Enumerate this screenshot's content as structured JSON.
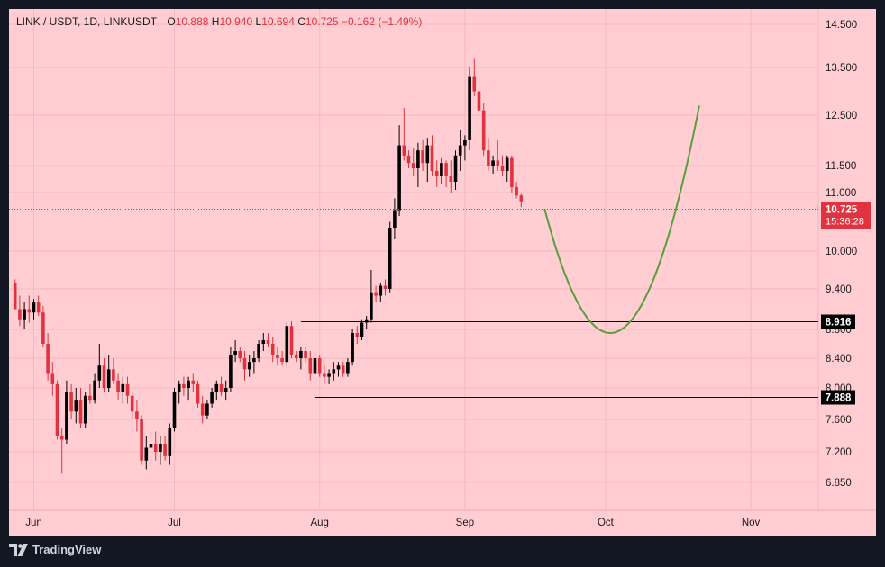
{
  "header": {
    "symbol": "LINK / USDT, 1D, LINKUSDT",
    "open_label": "O",
    "open": "10.888",
    "high_label": "H",
    "high": "10.940",
    "low_label": "L",
    "low": "10.694",
    "close_label": "C",
    "close": "10.725",
    "change": "−0.162 (−1.49%)"
  },
  "footer": {
    "brand": "TradingView",
    "icon": "tradingview-logo-icon"
  },
  "colors": {
    "background": "#ffcdd2",
    "up": "#000000",
    "down": "#e0323f",
    "projection": "#5a9e3c",
    "grid": "#f3b9be"
  },
  "chart_data": {
    "type": "candlestick",
    "yticks": [
      "14.500",
      "13.500",
      "12.500",
      "11.500",
      "11.000",
      "10.000",
      "9.400",
      "8.800",
      "8.400",
      "8.000",
      "7.600",
      "7.200",
      "6.850"
    ],
    "xticks": [
      "Jun",
      "Jul",
      "Aug",
      "Sep",
      "Oct",
      "Nov"
    ],
    "last_price": "10.725",
    "countdown": "15:36:28",
    "levels": [
      {
        "label": "8.916",
        "value": 8.916,
        "from_date": "2023-07-28"
      },
      {
        "label": "7.888",
        "value": 7.888,
        "from_date": "2023-07-31"
      }
    ],
    "projection": {
      "start": [
        "2023-09-18",
        10.72
      ],
      "bottom": [
        "2023-10-02",
        8.75
      ],
      "end": [
        "2023-10-21",
        12.7
      ]
    },
    "candles": [
      [
        "2023-05-28",
        9.5,
        9.55,
        9.1,
        9.1
      ],
      [
        "2023-05-29",
        9.1,
        9.3,
        8.85,
        8.95
      ],
      [
        "2023-05-30",
        8.95,
        9.2,
        8.8,
        9.1
      ],
      [
        "2023-05-31",
        9.1,
        9.3,
        8.9,
        9.05
      ],
      [
        "2023-06-01",
        9.05,
        9.25,
        8.95,
        9.2
      ],
      [
        "2023-06-02",
        9.2,
        9.3,
        9.0,
        9.05
      ],
      [
        "2023-06-03",
        9.05,
        9.15,
        8.55,
        8.6
      ],
      [
        "2023-06-04",
        8.6,
        8.75,
        8.1,
        8.2
      ],
      [
        "2023-06-05",
        8.2,
        8.35,
        7.9,
        8.05
      ],
      [
        "2023-06-06",
        8.05,
        8.1,
        7.35,
        7.4
      ],
      [
        "2023-06-07",
        7.4,
        7.5,
        6.95,
        7.35
      ],
      [
        "2023-06-08",
        7.35,
        8.1,
        7.3,
        7.95
      ],
      [
        "2023-06-09",
        7.95,
        8.05,
        7.6,
        7.7
      ],
      [
        "2023-06-10",
        7.7,
        8.0,
        7.55,
        7.85
      ],
      [
        "2023-06-11",
        7.85,
        8.0,
        7.5,
        7.55
      ],
      [
        "2023-06-12",
        7.55,
        7.95,
        7.5,
        7.9
      ],
      [
        "2023-06-13",
        7.9,
        8.05,
        7.8,
        7.85
      ],
      [
        "2023-06-14",
        7.85,
        8.2,
        7.8,
        8.1
      ],
      [
        "2023-06-15",
        8.1,
        8.6,
        8.0,
        8.3
      ],
      [
        "2023-06-16",
        8.3,
        8.4,
        7.95,
        8.0
      ],
      [
        "2023-06-17",
        8.0,
        8.45,
        7.95,
        8.25
      ],
      [
        "2023-06-18",
        8.25,
        8.4,
        8.05,
        8.1
      ],
      [
        "2023-06-19",
        8.1,
        8.2,
        7.85,
        7.95
      ],
      [
        "2023-06-20",
        7.95,
        8.15,
        7.8,
        8.05
      ],
      [
        "2023-06-21",
        8.05,
        8.15,
        7.8,
        7.9
      ],
      [
        "2023-06-22",
        7.9,
        7.95,
        7.6,
        7.7
      ],
      [
        "2023-06-23",
        7.7,
        7.85,
        7.45,
        7.6
      ],
      [
        "2023-06-24",
        7.6,
        7.65,
        7.05,
        7.1
      ],
      [
        "2023-06-25",
        7.1,
        7.4,
        7.0,
        7.25
      ],
      [
        "2023-06-26",
        7.25,
        7.45,
        7.1,
        7.3
      ],
      [
        "2023-06-27",
        7.3,
        7.45,
        7.1,
        7.2
      ],
      [
        "2023-06-28",
        7.2,
        7.4,
        7.05,
        7.3
      ],
      [
        "2023-06-29",
        7.3,
        7.4,
        7.1,
        7.15
      ],
      [
        "2023-06-30",
        7.15,
        7.55,
        7.05,
        7.5
      ],
      [
        "2023-07-01",
        7.5,
        8.0,
        7.45,
        7.95
      ],
      [
        "2023-07-02",
        7.95,
        8.1,
        7.8,
        8.05
      ],
      [
        "2023-07-03",
        8.05,
        8.15,
        7.9,
        8.0
      ],
      [
        "2023-07-04",
        8.0,
        8.15,
        7.85,
        8.1
      ],
      [
        "2023-07-05",
        8.1,
        8.2,
        7.95,
        8.05
      ],
      [
        "2023-07-06",
        8.05,
        8.1,
        7.75,
        7.8
      ],
      [
        "2023-07-07",
        7.8,
        7.9,
        7.55,
        7.65
      ],
      [
        "2023-07-08",
        7.65,
        7.85,
        7.6,
        7.8
      ],
      [
        "2023-07-09",
        7.8,
        8.0,
        7.75,
        7.95
      ],
      [
        "2023-07-10",
        7.95,
        8.1,
        7.85,
        8.05
      ],
      [
        "2023-07-11",
        8.05,
        8.15,
        7.9,
        7.95
      ],
      [
        "2023-07-12",
        7.95,
        8.1,
        7.85,
        8.0
      ],
      [
        "2023-07-13",
        8.0,
        8.55,
        7.95,
        8.45
      ],
      [
        "2023-07-14",
        8.45,
        8.65,
        8.35,
        8.5
      ],
      [
        "2023-07-15",
        8.5,
        8.55,
        8.35,
        8.4
      ],
      [
        "2023-07-16",
        8.4,
        8.5,
        8.1,
        8.25
      ],
      [
        "2023-07-17",
        8.25,
        8.45,
        8.15,
        8.35
      ],
      [
        "2023-07-18",
        8.35,
        8.5,
        8.2,
        8.4
      ],
      [
        "2023-07-19",
        8.4,
        8.65,
        8.35,
        8.6
      ],
      [
        "2023-07-20",
        8.6,
        8.75,
        8.5,
        8.65
      ],
      [
        "2023-07-21",
        8.65,
        8.75,
        8.55,
        8.6
      ],
      [
        "2023-07-22",
        8.6,
        8.7,
        8.35,
        8.45
      ],
      [
        "2023-07-23",
        8.45,
        8.55,
        8.3,
        8.4
      ],
      [
        "2023-07-24",
        8.4,
        8.5,
        8.3,
        8.35
      ],
      [
        "2023-07-25",
        8.35,
        8.9,
        8.3,
        8.85
      ],
      [
        "2023-07-26",
        8.85,
        8.92,
        8.4,
        8.45
      ],
      [
        "2023-07-27",
        8.45,
        8.5,
        8.35,
        8.4
      ],
      [
        "2023-07-28",
        8.4,
        8.55,
        8.25,
        8.5
      ],
      [
        "2023-07-29",
        8.5,
        8.55,
        8.35,
        8.4
      ],
      [
        "2023-07-30",
        8.4,
        8.5,
        8.1,
        8.2
      ],
      [
        "2023-07-31",
        8.2,
        8.45,
        7.95,
        8.4
      ],
      [
        "2023-08-01",
        8.4,
        8.45,
        8.15,
        8.2
      ],
      [
        "2023-08-02",
        8.2,
        8.3,
        8.05,
        8.15
      ],
      [
        "2023-08-03",
        8.15,
        8.25,
        8.05,
        8.2
      ],
      [
        "2023-08-04",
        8.2,
        8.35,
        8.1,
        8.25
      ],
      [
        "2023-08-05",
        8.25,
        8.35,
        8.15,
        8.3
      ],
      [
        "2023-08-06",
        8.3,
        8.35,
        8.15,
        8.2
      ],
      [
        "2023-08-07",
        8.2,
        8.4,
        8.15,
        8.35
      ],
      [
        "2023-08-08",
        8.35,
        8.8,
        8.3,
        8.75
      ],
      [
        "2023-08-09",
        8.75,
        8.85,
        8.6,
        8.7
      ],
      [
        "2023-08-10",
        8.7,
        8.95,
        8.65,
        8.9
      ],
      [
        "2023-08-11",
        8.9,
        9.0,
        8.8,
        8.95
      ],
      [
        "2023-08-12",
        8.95,
        9.7,
        8.9,
        9.35
      ],
      [
        "2023-08-13",
        9.35,
        9.45,
        9.2,
        9.3
      ],
      [
        "2023-08-14",
        9.3,
        9.5,
        9.2,
        9.45
      ],
      [
        "2023-08-15",
        9.45,
        9.55,
        9.3,
        9.4
      ],
      [
        "2023-08-16",
        9.4,
        10.5,
        9.35,
        10.4
      ],
      [
        "2023-08-17",
        10.4,
        10.9,
        10.2,
        10.7
      ],
      [
        "2023-08-18",
        10.7,
        12.3,
        10.6,
        11.9
      ],
      [
        "2023-08-19",
        11.9,
        12.65,
        11.6,
        11.7
      ],
      [
        "2023-08-20",
        11.7,
        11.8,
        11.45,
        11.55
      ],
      [
        "2023-08-21",
        11.55,
        11.85,
        11.3,
        11.45
      ],
      [
        "2023-08-22",
        11.45,
        11.95,
        11.1,
        11.8
      ],
      [
        "2023-08-23",
        11.8,
        12.0,
        11.4,
        11.55
      ],
      [
        "2023-08-24",
        11.55,
        12.05,
        11.2,
        11.9
      ],
      [
        "2023-08-25",
        11.9,
        12.1,
        11.3,
        11.4
      ],
      [
        "2023-08-26",
        11.4,
        11.6,
        11.1,
        11.3
      ],
      [
        "2023-08-27",
        11.3,
        11.65,
        11.15,
        11.55
      ],
      [
        "2023-08-28",
        11.55,
        11.6,
        11.1,
        11.3
      ],
      [
        "2023-08-29",
        11.3,
        11.6,
        11.0,
        11.2
      ],
      [
        "2023-08-30",
        11.2,
        11.8,
        11.05,
        11.7
      ],
      [
        "2023-08-31",
        11.7,
        12.2,
        11.4,
        11.9
      ],
      [
        "2023-09-01",
        11.9,
        12.1,
        11.6,
        12.0
      ],
      [
        "2023-09-02",
        12.0,
        13.5,
        11.8,
        13.3
      ],
      [
        "2023-09-03",
        13.3,
        13.7,
        12.9,
        13.0
      ],
      [
        "2023-09-04",
        13.0,
        13.1,
        12.5,
        12.6
      ],
      [
        "2023-09-05",
        12.6,
        12.75,
        11.7,
        11.8
      ],
      [
        "2023-09-06",
        11.8,
        12.05,
        11.4,
        11.5
      ],
      [
        "2023-09-07",
        11.5,
        11.7,
        11.35,
        11.6
      ],
      [
        "2023-09-08",
        11.6,
        12.0,
        11.4,
        11.5
      ],
      [
        "2023-09-09",
        11.5,
        11.7,
        11.3,
        11.4
      ],
      [
        "2023-09-10",
        11.4,
        11.7,
        11.2,
        11.65
      ],
      [
        "2023-09-11",
        11.65,
        11.7,
        11.0,
        11.1
      ],
      [
        "2023-09-12",
        11.1,
        11.2,
        10.9,
        10.95
      ],
      [
        "2023-09-13",
        10.95,
        10.98,
        10.75,
        10.85
      ]
    ]
  }
}
